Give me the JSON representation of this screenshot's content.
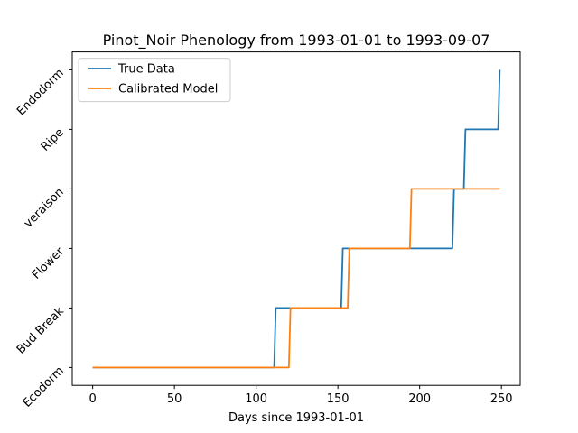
{
  "chart_data": {
    "type": "line",
    "title": "Pinot_Noir Phenology from 1993-01-01 to 1993-09-07",
    "xlabel": "Days since 1993-01-01",
    "ylabel": "",
    "xlim": [
      -12.5,
      261.5
    ],
    "ylim": [
      -0.3,
      5.3
    ],
    "xticks": [
      0,
      50,
      100,
      150,
      200,
      250
    ],
    "yticks": [
      0,
      1,
      2,
      3,
      4,
      5
    ],
    "ytick_labels": [
      "Ecodorm",
      "Bud Break",
      "Flower",
      "veraison",
      "Ripe",
      "Endodorm"
    ],
    "grid": false,
    "legend": "top-left",
    "series": [
      {
        "name": "True Data",
        "color": "#1f77b4",
        "points": [
          [
            0,
            0
          ],
          [
            111,
            0
          ],
          [
            112,
            1
          ],
          [
            152,
            1
          ],
          [
            153,
            2
          ],
          [
            220,
            2
          ],
          [
            221,
            3
          ],
          [
            227,
            3
          ],
          [
            228,
            4
          ],
          [
            248,
            4
          ],
          [
            249,
            5
          ]
        ]
      },
      {
        "name": "Calibrated Model",
        "color": "#ff7f0e",
        "points": [
          [
            0,
            0
          ],
          [
            120,
            0
          ],
          [
            121,
            1
          ],
          [
            156,
            1
          ],
          [
            157,
            2
          ],
          [
            194,
            2
          ],
          [
            195,
            3
          ],
          [
            249,
            3
          ]
        ]
      }
    ]
  }
}
